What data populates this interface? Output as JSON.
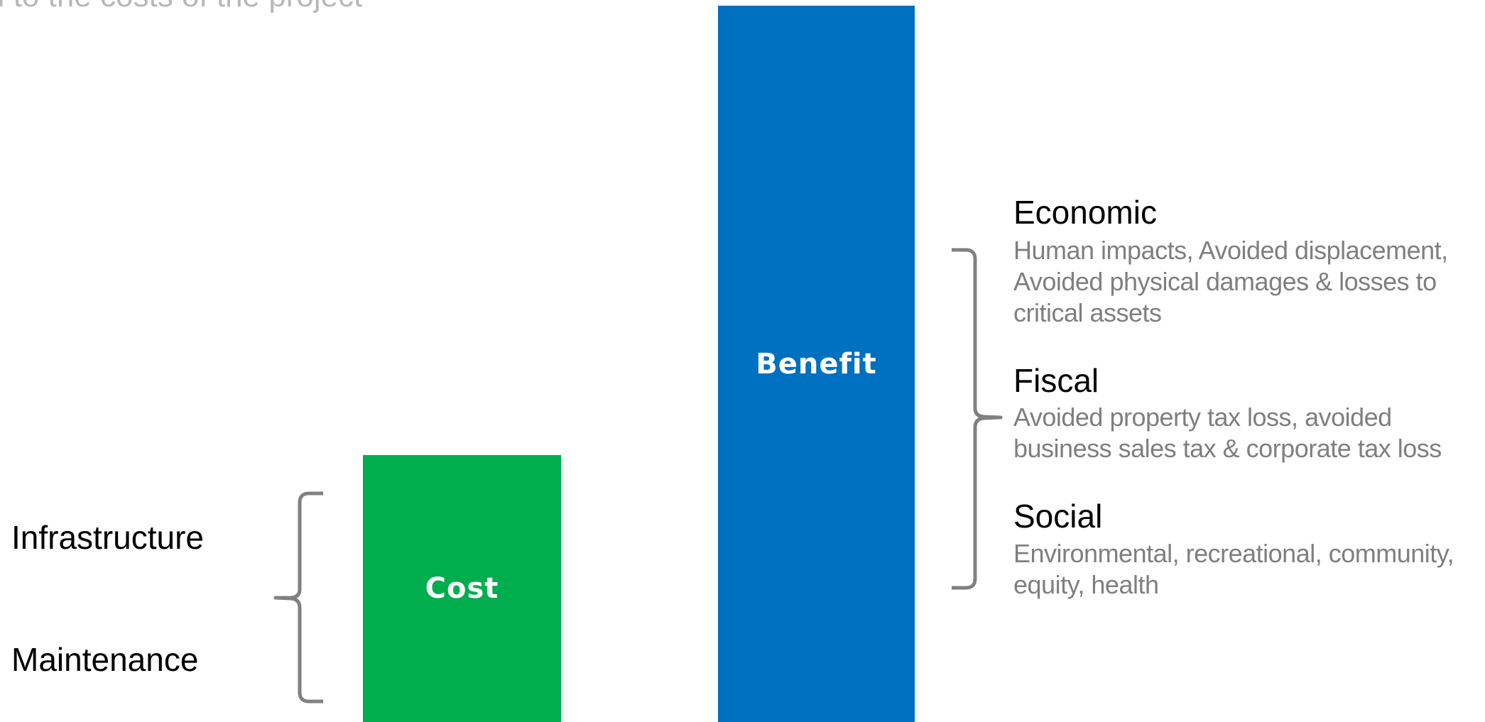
{
  "header": {
    "subtitle": "d to the costs of the project"
  },
  "bars": {
    "cost": {
      "label": "Cost",
      "color": "#00AE4E"
    },
    "benefit": {
      "label": "Benefit",
      "color": "#0070C0"
    }
  },
  "cost_items": [
    "Infrastructure",
    "Maintenance"
  ],
  "benefit_categories": [
    {
      "title": "Economic",
      "description": "Human impacts, Avoided displacement, Avoided physical damages & losses to critical assets"
    },
    {
      "title": "Fiscal",
      "description": "Avoided property tax loss, avoided business sales tax & corporate tax loss"
    },
    {
      "title": "Social",
      "description": "Environmental, recreational, community, equity, health"
    }
  ],
  "colors": {
    "brace": "#808080",
    "description_text": "#7F7F7F"
  }
}
